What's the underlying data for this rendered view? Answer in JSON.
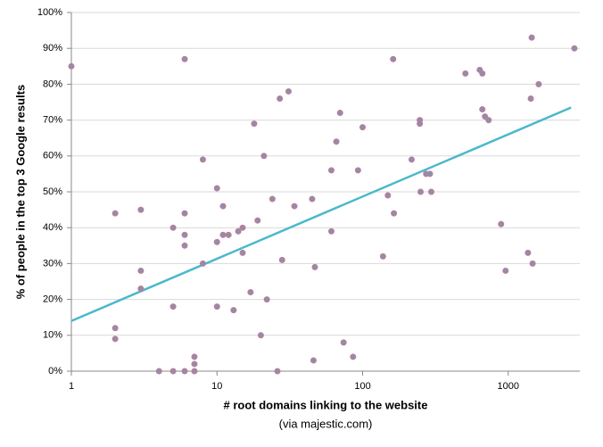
{
  "chart_data": {
    "type": "scatter",
    "y_label": "% of people in the top 3 Google results",
    "x_label": "# root domains linking to the website",
    "x_sublabel": "(via majestic.com)",
    "log_x": true,
    "grid": true,
    "xlim": [
      1,
      3100
    ],
    "xticks": [
      1,
      10,
      100,
      1000
    ],
    "ylim": [
      0,
      100
    ],
    "yticks": [
      {
        "value": 0,
        "label": "0%"
      },
      {
        "value": 10,
        "label": "10%"
      },
      {
        "value": 20,
        "label": "20%"
      },
      {
        "value": 30,
        "label": "30%"
      },
      {
        "value": 40,
        "label": "40%"
      },
      {
        "value": 50,
        "label": "50%"
      },
      {
        "value": 60,
        "label": "60%"
      },
      {
        "value": 70,
        "label": "70%"
      },
      {
        "value": 80,
        "label": "80%"
      },
      {
        "value": 90,
        "label": "90%"
      },
      {
        "value": 100,
        "label": "100%"
      }
    ],
    "series": [
      {
        "color": "#8b8fb0",
        "edge_color": "#c9798f",
        "x": [
          1,
          2,
          2,
          2,
          3,
          3,
          3,
          4,
          5,
          5,
          5,
          6,
          6,
          6,
          6,
          6,
          7,
          7,
          7,
          8,
          8,
          10,
          10,
          10,
          11,
          11,
          12,
          13,
          14,
          15,
          15,
          17,
          18,
          19,
          20,
          21,
          22,
          24,
          26,
          27,
          28,
          31,
          34,
          45,
          46,
          47,
          61,
          61,
          66,
          70,
          74,
          86,
          93,
          100,
          138,
          149,
          162,
          164,
          217,
          247,
          247,
          250,
          273,
          290,
          296,
          508,
          637,
          664,
          664,
          692,
          733,
          893,
          959,
          1366,
          1428,
          1449,
          1470,
          1618,
          2845
        ],
        "values": [
          85,
          44,
          12,
          9,
          45,
          28,
          23,
          0,
          40,
          18,
          0,
          87,
          44,
          38,
          35,
          0,
          4,
          2,
          0,
          59,
          30,
          51,
          36,
          18,
          46,
          38,
          38,
          17,
          39,
          40,
          33,
          22,
          69,
          42,
          10,
          60,
          20,
          48,
          0,
          76,
          31,
          78,
          46,
          48,
          3,
          29,
          56,
          39,
          64,
          72,
          8,
          4,
          56,
          68,
          32,
          49,
          87,
          44,
          59,
          70,
          69,
          50,
          55,
          55,
          50,
          83,
          84,
          83,
          73,
          71,
          70,
          41,
          28,
          33,
          76,
          93,
          30,
          80,
          90
        ]
      }
    ],
    "trendline": {
      "color": "#4bb8cc",
      "x": [
        1,
        2700
      ],
      "values": [
        14,
        73.5
      ]
    }
  }
}
